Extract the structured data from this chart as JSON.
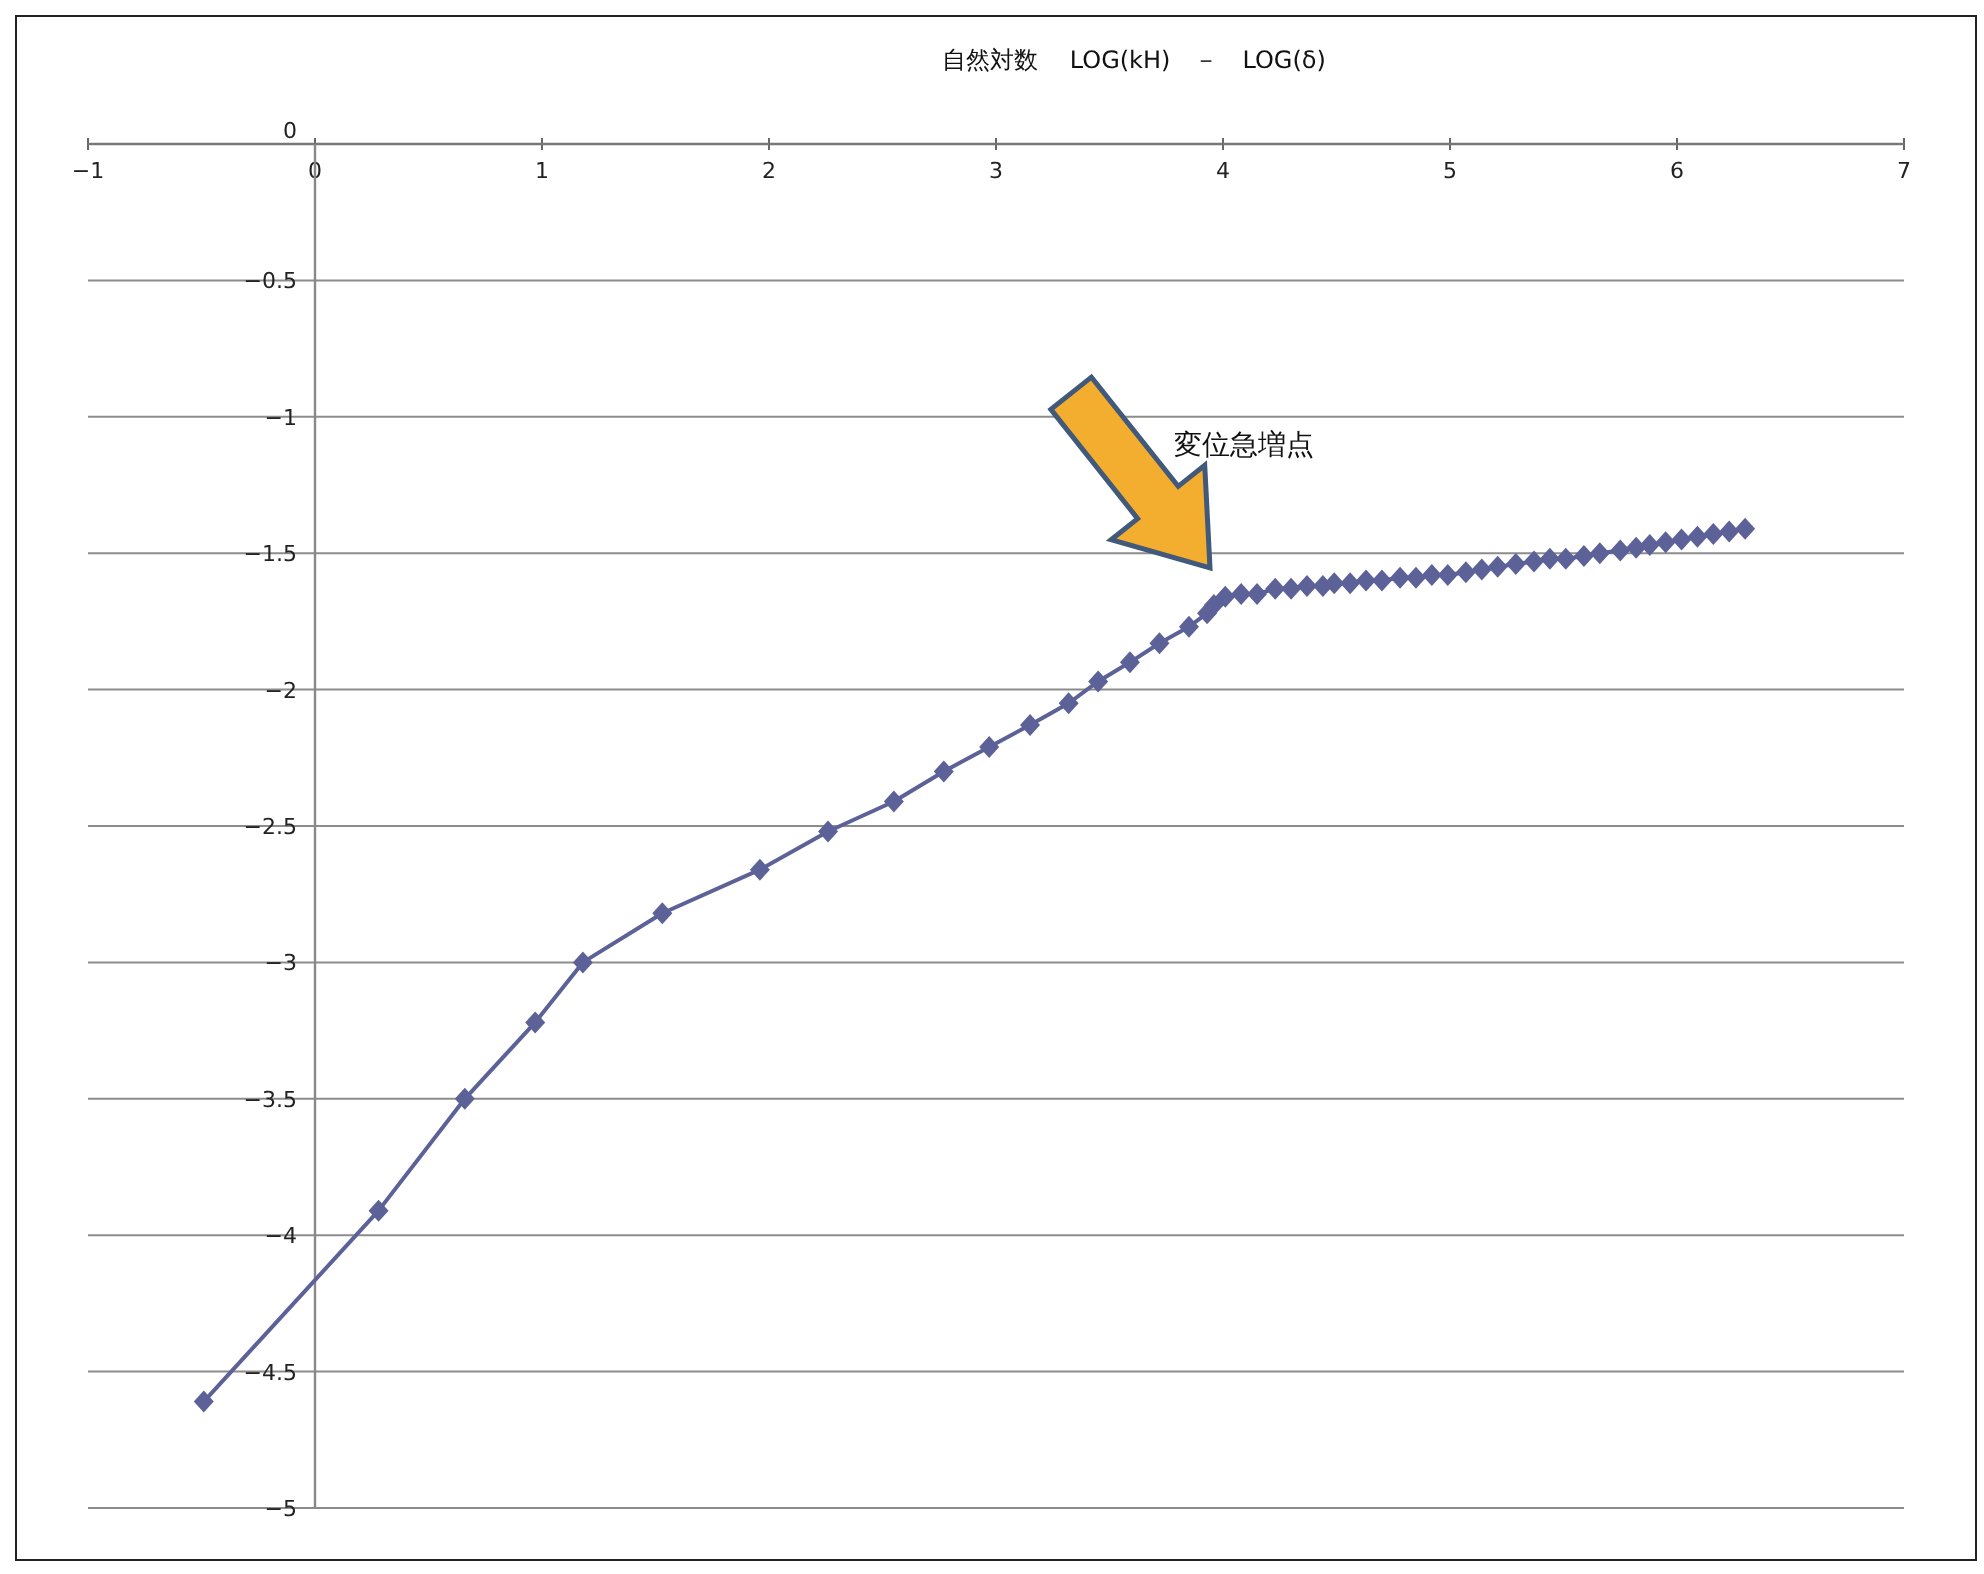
{
  "chart_data": {
    "type": "line",
    "title": "自然対数　 LOG(kH)　－　LOG(δ)",
    "xlim": [
      -1,
      7
    ],
    "xticks": [
      -1,
      0,
      1,
      2,
      3,
      4,
      5,
      6,
      7
    ],
    "ylim": [
      -5,
      0
    ],
    "yticks": [
      -5,
      -4.5,
      -4,
      -3.5,
      -3,
      -2.5,
      -2,
      -1.5,
      -1,
      -0.5,
      0
    ],
    "grid": "y",
    "marker": "diamond",
    "series": [
      {
        "color": "#5c6298",
        "x": [
          -0.49,
          0.28,
          0.66,
          0.97,
          1.18,
          1.53,
          1.96,
          2.26,
          2.55,
          2.77,
          2.97,
          3.15,
          3.32,
          3.45,
          3.59,
          3.72,
          3.85,
          3.93,
          3.96,
          4.01,
          4.08,
          4.15,
          4.23,
          4.3,
          4.37,
          4.44,
          4.49,
          4.56,
          4.63,
          4.7,
          4.78,
          4.85,
          4.92,
          4.99,
          5.07,
          5.14,
          5.21,
          5.29,
          5.37,
          5.44,
          5.51,
          5.59,
          5.66,
          5.75,
          5.82,
          5.88,
          5.95,
          6.02,
          6.09,
          6.16,
          6.23,
          6.3
        ],
        "values": [
          -4.61,
          -3.91,
          -3.5,
          -3.22,
          -3.0,
          -2.82,
          -2.66,
          -2.52,
          -2.41,
          -2.3,
          -2.21,
          -2.13,
          -2.05,
          -1.97,
          -1.9,
          -1.83,
          -1.77,
          -1.72,
          -1.69,
          -1.66,
          -1.65,
          -1.65,
          -1.63,
          -1.63,
          -1.62,
          -1.62,
          -1.61,
          -1.61,
          -1.6,
          -1.6,
          -1.59,
          -1.59,
          -1.58,
          -1.58,
          -1.57,
          -1.56,
          -1.55,
          -1.54,
          -1.53,
          -1.52,
          -1.52,
          -1.51,
          -1.5,
          -1.49,
          -1.48,
          -1.47,
          -1.46,
          -1.45,
          -1.44,
          -1.43,
          -1.42,
          -1.41
        ]
      }
    ],
    "annotations": [
      "変位急増点"
    ]
  }
}
